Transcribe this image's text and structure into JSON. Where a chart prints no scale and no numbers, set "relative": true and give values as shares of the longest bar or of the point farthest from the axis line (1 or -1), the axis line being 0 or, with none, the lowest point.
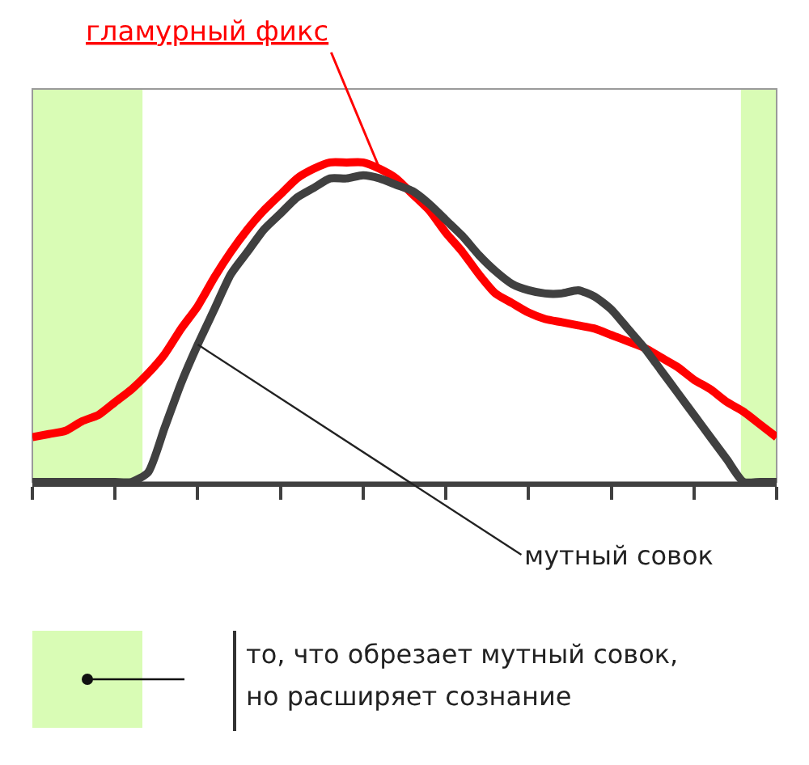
{
  "chart_data": {
    "type": "line",
    "relative": true,
    "grid": false,
    "legend": false,
    "marker": "none",
    "line_style": "solid",
    "categories": [
      null,
      null,
      null,
      null,
      null,
      null,
      null,
      null,
      null,
      null,
      null,
      null,
      null,
      null,
      null,
      null,
      null,
      null,
      null,
      null,
      null,
      null,
      null,
      null,
      null,
      null,
      null,
      null,
      null,
      null,
      null,
      null,
      null,
      null,
      null,
      null,
      null,
      null,
      null,
      null,
      null,
      null,
      null,
      null,
      null,
      null
    ],
    "series": [
      {
        "name": "гламурный фикс",
        "color": "#ff0000",
        "values": [
          0.14,
          0.15,
          0.16,
          0.19,
          0.21,
          0.25,
          0.29,
          0.34,
          0.4,
          0.48,
          0.55,
          0.64,
          0.72,
          0.79,
          0.85,
          0.9,
          0.95,
          0.98,
          1.0,
          1.0,
          1.0,
          0.98,
          0.95,
          0.9,
          0.85,
          0.78,
          0.72,
          0.65,
          0.59,
          0.56,
          0.53,
          0.51,
          0.5,
          0.49,
          0.48,
          0.46,
          0.44,
          0.42,
          0.39,
          0.36,
          0.32,
          0.29,
          0.25,
          0.22,
          0.18,
          0.14
        ]
      },
      {
        "name": "мутный совок",
        "color": "#404040",
        "values": [
          0,
          0,
          0,
          0,
          0,
          0,
          0,
          0.03,
          0.17,
          0.31,
          0.43,
          0.54,
          0.65,
          0.72,
          0.79,
          0.84,
          0.89,
          0.92,
          0.95,
          0.95,
          0.96,
          0.95,
          0.93,
          0.91,
          0.87,
          0.82,
          0.77,
          0.71,
          0.66,
          0.62,
          0.6,
          0.59,
          0.59,
          0.6,
          0.58,
          0.54,
          0.48,
          0.42,
          0.35,
          0.28,
          0.21,
          0.14,
          0.07,
          0,
          0,
          0
        ]
      }
    ],
    "annotations": [
      "то, что обрезает мутный совок, но расширяет сознание"
    ]
  }
}
